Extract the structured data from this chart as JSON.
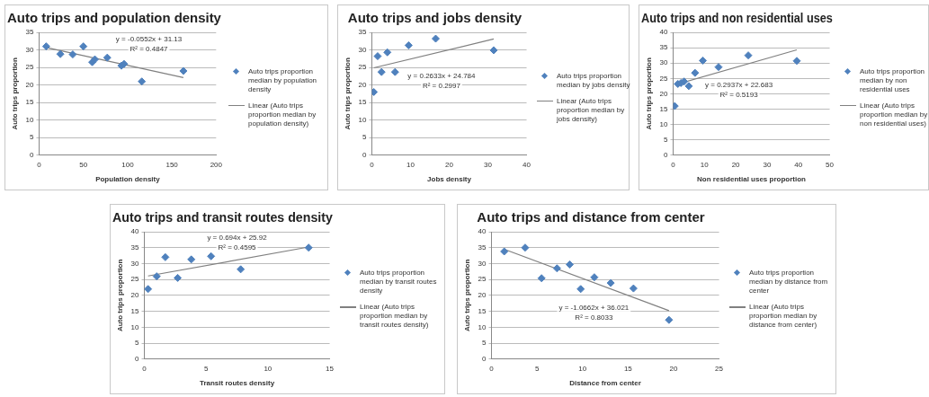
{
  "chart_data": [
    {
      "type": "scatter",
      "title": "Auto trips and population density",
      "xlabel": "Population density",
      "ylabel": "Auto trips proportion",
      "xlim": [
        0,
        200
      ],
      "xticks": [
        0,
        50,
        100,
        150,
        200
      ],
      "ylim": [
        0,
        35
      ],
      "yticks": [
        0,
        5,
        10,
        15,
        20,
        25,
        30,
        35
      ],
      "grid": "y",
      "legend": "right",
      "marker": "diamond",
      "annotations": [
        "y = -0.0552x + 31.13",
        "R² = 0.4847"
      ],
      "series": [
        {
          "name": "Auto trips proportion median by population density",
          "color": "#4f81bd",
          "x": [
            8,
            24,
            38,
            50,
            60,
            63,
            77,
            93,
            96,
            116,
            163
          ],
          "values": [
            31,
            28.8,
            28.7,
            31,
            26.5,
            27.3,
            27.8,
            25.5,
            26,
            21,
            24
          ]
        },
        {
          "type": "line",
          "name": "Linear (Auto trips proportion median by population density)",
          "color": "#808080",
          "x": [
            8,
            163
          ],
          "values": [
            30.7,
            22.1
          ],
          "marker": "none"
        }
      ]
    },
    {
      "type": "scatter",
      "title": "Auto trips and jobs density",
      "xlabel": "Jobs density",
      "ylabel": "Auto trips proportion",
      "xlim": [
        0,
        40
      ],
      "xticks": [
        0,
        10,
        20,
        30,
        40
      ],
      "ylim": [
        0,
        35
      ],
      "yticks": [
        0,
        5,
        10,
        15,
        20,
        25,
        30,
        35
      ],
      "grid": "y",
      "legend": "right",
      "marker": "diamond",
      "annotations": [
        "y = 0.2633x + 24.784",
        "R² = 0.2997"
      ],
      "series": [
        {
          "name": "Auto trips proportion median by jobs density",
          "color": "#4f81bd",
          "x": [
            0.5,
            1.5,
            2.5,
            4,
            6,
            9.5,
            16.5,
            31.5
          ],
          "values": [
            18,
            28.2,
            23.7,
            29.3,
            23.7,
            31.3,
            33.2,
            29.9
          ]
        },
        {
          "type": "line",
          "name": "Linear (Auto trips proportion median by jobs density)",
          "color": "#808080",
          "x": [
            0.5,
            31.5
          ],
          "values": [
            24.9,
            33.1
          ],
          "marker": "none"
        }
      ]
    },
    {
      "type": "scatter",
      "title": "Auto trips and non residential uses",
      "xlabel": "Non residential uses proportion",
      "ylabel": "Auto trips proportion",
      "xlim": [
        0,
        50
      ],
      "xticks": [
        0,
        10,
        20,
        30,
        40,
        50
      ],
      "ylim": [
        0,
        40
      ],
      "yticks": [
        0,
        5,
        10,
        15,
        20,
        25,
        30,
        35,
        40
      ],
      "grid": "y",
      "legend": "right",
      "marker": "diamond",
      "annotations": [
        "y = 0.2937x + 22.683",
        "R² = 0.5193"
      ],
      "series": [
        {
          "name": "Auto trips proportion median by non residential uses",
          "color": "#4f81bd",
          "x": [
            0.5,
            1.5,
            2.5,
            3.5,
            5,
            7,
            9.5,
            14.5,
            24,
            39.5
          ],
          "values": [
            16,
            23.2,
            23.5,
            24,
            22.5,
            26.8,
            30.8,
            28.7,
            32.5,
            30.7
          ]
        },
        {
          "type": "line",
          "name": "Linear (Auto trips proportion median by non residential uses)",
          "color": "#808080",
          "x": [
            3,
            39.5
          ],
          "values": [
            23.6,
            34.3
          ],
          "marker": "none"
        }
      ]
    },
    {
      "type": "scatter",
      "title": "Auto trips and transit routes density",
      "xlabel": "Transit routes density",
      "ylabel": "Auto trips proportion",
      "xlim": [
        0,
        15
      ],
      "xticks": [
        0,
        5,
        10,
        15
      ],
      "ylim": [
        0,
        40
      ],
      "yticks": [
        0,
        5,
        10,
        15,
        20,
        25,
        30,
        35,
        40
      ],
      "grid": "y",
      "legend": "right",
      "marker": "diamond",
      "annotations": [
        "y = 0.694x + 25.92",
        "R² = 0.4595"
      ],
      "series": [
        {
          "name": "Auto trips proportion median by transit routes density",
          "color": "#4f81bd",
          "x": [
            0.3,
            1,
            1.7,
            2.7,
            3.8,
            5.4,
            7.8,
            13.3
          ],
          "values": [
            22,
            26,
            32,
            25.5,
            31.3,
            32.3,
            28.2,
            35
          ]
        },
        {
          "type": "line",
          "name": "Linear (Auto trips proportion median by transit routes density)",
          "color": "#808080",
          "x": [
            0.3,
            13.3
          ],
          "values": [
            26.1,
            35.2
          ],
          "marker": "none"
        }
      ]
    },
    {
      "type": "scatter",
      "title": "Auto trips and distance from center",
      "xlabel": "Distance from center",
      "ylabel": "Auto trips proportion",
      "xlim": [
        0,
        25
      ],
      "xticks": [
        0,
        5,
        10,
        15,
        20,
        25
      ],
      "ylim": [
        0,
        40
      ],
      "yticks": [
        0,
        5,
        10,
        15,
        20,
        25,
        30,
        35,
        40
      ],
      "grid": "y",
      "legend": "right",
      "marker": "diamond",
      "annotations": [
        "y = -1.0662x + 36.021",
        "R² = 0.8033"
      ],
      "series": [
        {
          "name": "Auto trips proportion median by distance from center",
          "color": "#4f81bd",
          "x": [
            1.4,
            3.7,
            5.5,
            7.2,
            8.6,
            9.8,
            11.3,
            13.1,
            15.6,
            19.5
          ],
          "values": [
            33.8,
            35,
            25.4,
            28.5,
            29.7,
            22,
            25.7,
            23.9,
            22.2,
            12.3
          ]
        },
        {
          "type": "line",
          "name": "Linear (Auto trips proportion median by distance from center)",
          "color": "#808080",
          "x": [
            1.4,
            19.5
          ],
          "values": [
            34.5,
            15.2
          ],
          "marker": "none"
        }
      ]
    }
  ]
}
